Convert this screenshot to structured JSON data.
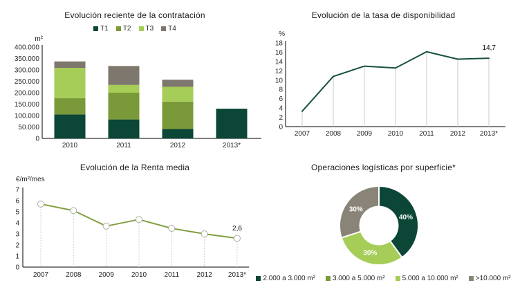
{
  "page_background": "#ffffff",
  "chart_data": [
    {
      "type": "bar",
      "variant": "stacked",
      "title": "Evolución reciente de la contratación",
      "unit_label": "m²",
      "categories": [
        "2010",
        "2011",
        "2012",
        "2013*"
      ],
      "series": [
        {
          "name": "T1",
          "color": "#0b4636",
          "values": [
            105000,
            83000,
            41000,
            130000
          ]
        },
        {
          "name": "T2",
          "color": "#7a9a3a",
          "values": [
            71000,
            117000,
            120000,
            0
          ]
        },
        {
          "name": "T3",
          "color": "#a5cd57",
          "values": [
            133000,
            34000,
            65000,
            0
          ]
        },
        {
          "name": "T4",
          "color": "#7e776d",
          "values": [
            28000,
            83000,
            31000,
            0
          ]
        }
      ],
      "ylim": [
        0,
        400000
      ],
      "ytick_step": 50000,
      "grid": false,
      "legend_position": "top"
    },
    {
      "type": "line",
      "title": "Evolución de la tasa de disponibilidad",
      "unit_label": "%",
      "x": [
        "2007",
        "2008",
        "2009",
        "2010",
        "2011",
        "2012",
        "2013*"
      ],
      "values": [
        3.3,
        10.8,
        13.0,
        12.6,
        16.1,
        14.5,
        14.7
      ],
      "ylim": [
        0,
        18
      ],
      "ytick_step": 2,
      "line_color": "#175239",
      "markers": false,
      "drop_lines": "solid",
      "grid": false,
      "annotation": {
        "text": "14,7",
        "point_index": 6
      }
    },
    {
      "type": "line",
      "title": "Evolución de la Renta media",
      "unit_label": "€/m²/mes",
      "x": [
        "2007",
        "2008",
        "2009",
        "2010",
        "2011",
        "2012",
        "2013*"
      ],
      "values": [
        5.7,
        5.1,
        3.7,
        4.3,
        3.5,
        3.0,
        2.6
      ],
      "ylim": [
        0,
        7
      ],
      "ytick_step": 1,
      "line_color": "#80a03f",
      "markers": true,
      "marker_fill": "#ffffff",
      "marker_stroke": "#aeae9f",
      "drop_lines": "dashed",
      "grid": false,
      "annotation": {
        "text": "2,6",
        "point_index": 6
      }
    },
    {
      "type": "pie",
      "variant": "donut",
      "title": "Operaciones logísticas por superficie*",
      "slices": [
        {
          "label": "2.000 a 3.000 m²",
          "value": 40,
          "color": "#0b4636",
          "data_label": "40%"
        },
        {
          "label": "3.000 a 5.000 m²",
          "value": 0,
          "color": "#7a9a3a",
          "data_label": ""
        },
        {
          "label": "5.000 a 10.000 m²",
          "value": 30,
          "color": "#a5cd57",
          "data_label": "30%"
        },
        {
          "label": ">10.000 m²",
          "value": 30,
          "color": "#8a8378",
          "data_label": "30%"
        }
      ],
      "legend_position": "bottom"
    }
  ]
}
